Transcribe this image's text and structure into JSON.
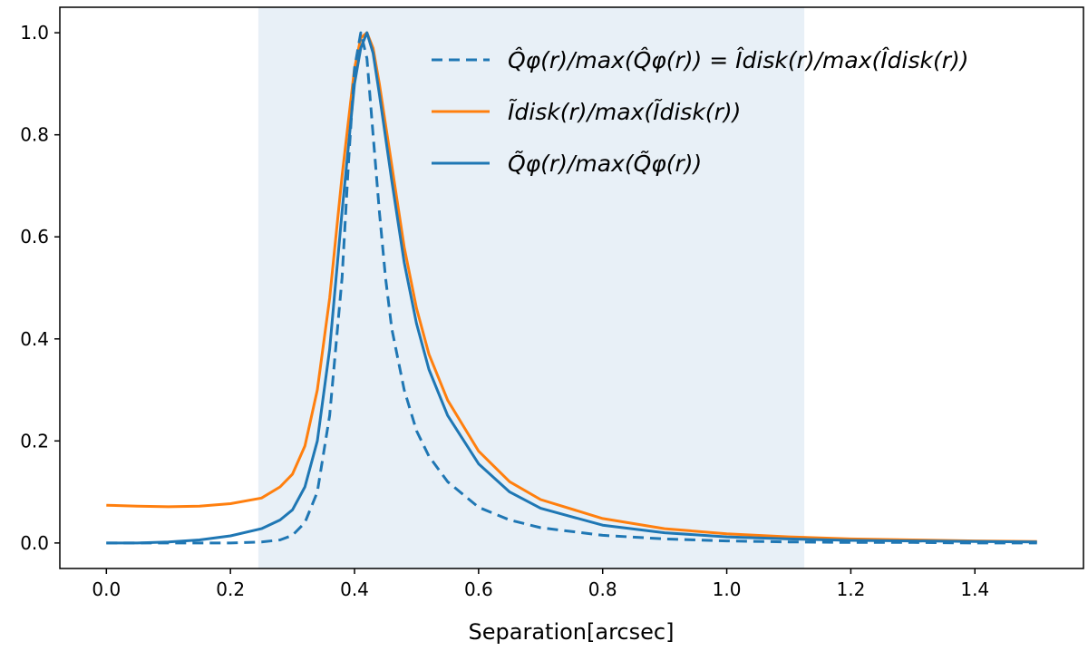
{
  "chart_data": {
    "type": "line",
    "title": "",
    "xlabel": "Separation[arcsec]",
    "ylabel": "",
    "xlim": [
      -0.075,
      1.575
    ],
    "ylim": [
      -0.05,
      1.05
    ],
    "xticks": [
      0.0,
      0.2,
      0.4,
      0.6,
      0.8,
      1.0,
      1.2,
      1.4
    ],
    "xtick_labels": [
      "0.0",
      "0.2",
      "0.4",
      "0.6",
      "0.8",
      "1.0",
      "1.2",
      "1.4"
    ],
    "yticks": [
      0.0,
      0.2,
      0.4,
      0.6,
      0.8,
      1.0
    ],
    "ytick_labels": [
      "0.0",
      "0.2",
      "0.4",
      "0.6",
      "0.8",
      "1.0"
    ],
    "shaded_region": {
      "x_start": 0.245,
      "x_end": 1.125,
      "color": "#e8f0f7"
    },
    "legend_position": "top-right",
    "series": [
      {
        "name": "Q̂φ(r)/max(Q̂φ(r)) = Îdisk(r)/max(Îdisk(r))",
        "color": "#1f77b4",
        "style": "dashed",
        "x": [
          0.0,
          0.1,
          0.2,
          0.25,
          0.28,
          0.3,
          0.32,
          0.34,
          0.36,
          0.38,
          0.39,
          0.4,
          0.41,
          0.42,
          0.43,
          0.44,
          0.45,
          0.46,
          0.48,
          0.5,
          0.52,
          0.55,
          0.6,
          0.65,
          0.7,
          0.8,
          0.9,
          1.0,
          1.1,
          1.2,
          1.3,
          1.4,
          1.5
        ],
        "y": [
          0.0,
          0.0,
          0.0,
          0.002,
          0.006,
          0.015,
          0.04,
          0.1,
          0.25,
          0.52,
          0.74,
          0.93,
          1.0,
          0.95,
          0.8,
          0.65,
          0.52,
          0.42,
          0.3,
          0.22,
          0.17,
          0.12,
          0.07,
          0.045,
          0.03,
          0.015,
          0.008,
          0.004,
          0.002,
          0.001,
          0.001,
          0.0,
          0.0
        ]
      },
      {
        "name": "Ĩdisk(r)/max(Ĩdisk(r))",
        "color": "#ff7f0e",
        "style": "solid",
        "x": [
          0.0,
          0.05,
          0.1,
          0.15,
          0.2,
          0.25,
          0.28,
          0.3,
          0.32,
          0.34,
          0.36,
          0.38,
          0.4,
          0.41,
          0.42,
          0.43,
          0.44,
          0.46,
          0.48,
          0.5,
          0.52,
          0.55,
          0.6,
          0.65,
          0.7,
          0.8,
          0.9,
          1.0,
          1.1,
          1.2,
          1.3,
          1.4,
          1.5
        ],
        "y": [
          0.074,
          0.072,
          0.071,
          0.072,
          0.077,
          0.088,
          0.11,
          0.135,
          0.19,
          0.3,
          0.48,
          0.72,
          0.93,
          0.99,
          1.0,
          0.97,
          0.9,
          0.74,
          0.58,
          0.46,
          0.37,
          0.28,
          0.18,
          0.12,
          0.085,
          0.048,
          0.028,
          0.018,
          0.012,
          0.008,
          0.006,
          0.004,
          0.003
        ]
      },
      {
        "name": "Q̃φ(r)/max(Q̃φ(r))",
        "color": "#1f77b4",
        "style": "solid",
        "x": [
          0.0,
          0.05,
          0.1,
          0.15,
          0.2,
          0.25,
          0.28,
          0.3,
          0.32,
          0.34,
          0.36,
          0.38,
          0.4,
          0.41,
          0.42,
          0.43,
          0.44,
          0.46,
          0.48,
          0.5,
          0.52,
          0.55,
          0.6,
          0.65,
          0.7,
          0.8,
          0.9,
          1.0,
          1.1,
          1.2,
          1.3,
          1.4,
          1.5
        ],
        "y": [
          0.0,
          0.0,
          0.002,
          0.006,
          0.014,
          0.028,
          0.045,
          0.065,
          0.11,
          0.2,
          0.38,
          0.65,
          0.9,
          0.97,
          1.0,
          0.96,
          0.88,
          0.71,
          0.55,
          0.43,
          0.34,
          0.25,
          0.155,
          0.1,
          0.068,
          0.035,
          0.02,
          0.012,
          0.008,
          0.005,
          0.004,
          0.003,
          0.002
        ]
      }
    ],
    "legend": [
      {
        "label": "Q̂φ(r)/max(Q̂φ(r)) = Îdisk(r)/max(Îdisk(r))"
      },
      {
        "label": "Ĩdisk(r)/max(Ĩdisk(r))"
      },
      {
        "label": "Q̃φ(r)/max(Q̃φ(r))"
      }
    ]
  }
}
